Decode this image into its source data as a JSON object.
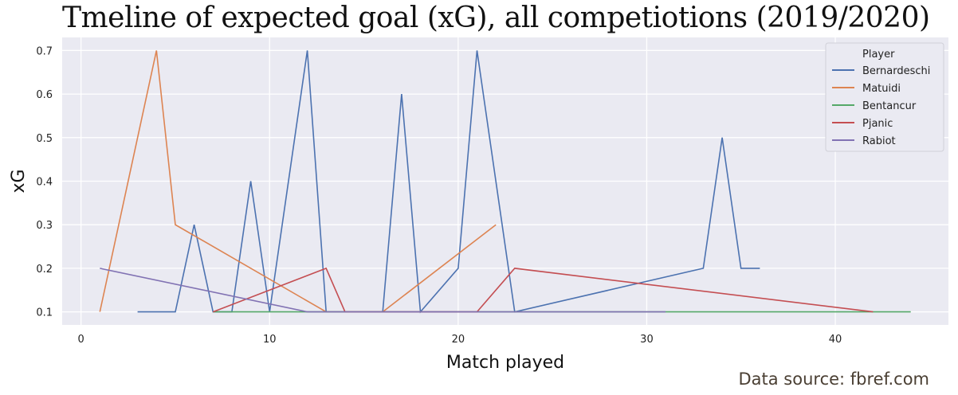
{
  "title": "Tmeline of expected goal (xG), all competiotions (2019/2020)",
  "source": "Data source: fbref.com",
  "chart_data": {
    "type": "line",
    "xlabel": "Match played",
    "ylabel": "xG",
    "xlim": [
      -1,
      46
    ],
    "ylim": [
      0.07,
      0.73
    ],
    "xticks": [
      0,
      10,
      20,
      30,
      40
    ],
    "yticks": [
      0.1,
      0.2,
      0.3,
      0.4,
      0.5,
      0.6,
      0.7
    ],
    "grid": true,
    "legend_title": "Player",
    "legend_position": "top-right",
    "background": "#eaeaf2",
    "series": [
      {
        "name": "Bernardeschi",
        "color": "#4c72b0",
        "x": [
          3,
          5,
          6,
          7,
          8,
          9,
          10,
          12,
          13,
          16,
          17,
          18,
          20,
          21,
          23,
          33,
          34,
          35,
          36
        ],
        "y": [
          0.1,
          0.1,
          0.3,
          0.1,
          0.1,
          0.4,
          0.1,
          0.7,
          0.1,
          0.1,
          0.6,
          0.1,
          0.2,
          0.7,
          0.1,
          0.2,
          0.5,
          0.2,
          0.2
        ]
      },
      {
        "name": "Matuidi",
        "color": "#dd8452",
        "x": [
          1,
          4,
          5,
          13,
          16,
          22
        ],
        "y": [
          0.1,
          0.7,
          0.3,
          0.1,
          0.1,
          0.3
        ]
      },
      {
        "name": "Bentancur",
        "color": "#55a868",
        "x": [
          7,
          8,
          12,
          31,
          44
        ],
        "y": [
          0.1,
          0.1,
          0.1,
          0.1,
          0.1
        ]
      },
      {
        "name": "Pjanic",
        "color": "#c44e52",
        "x": [
          7,
          13,
          14,
          21,
          23,
          42
        ],
        "y": [
          0.1,
          0.2,
          0.1,
          0.1,
          0.2,
          0.1
        ]
      },
      {
        "name": "Rabiot",
        "color": "#8172b3",
        "x": [
          1,
          12,
          31
        ],
        "y": [
          0.2,
          0.1,
          0.1
        ]
      }
    ]
  }
}
